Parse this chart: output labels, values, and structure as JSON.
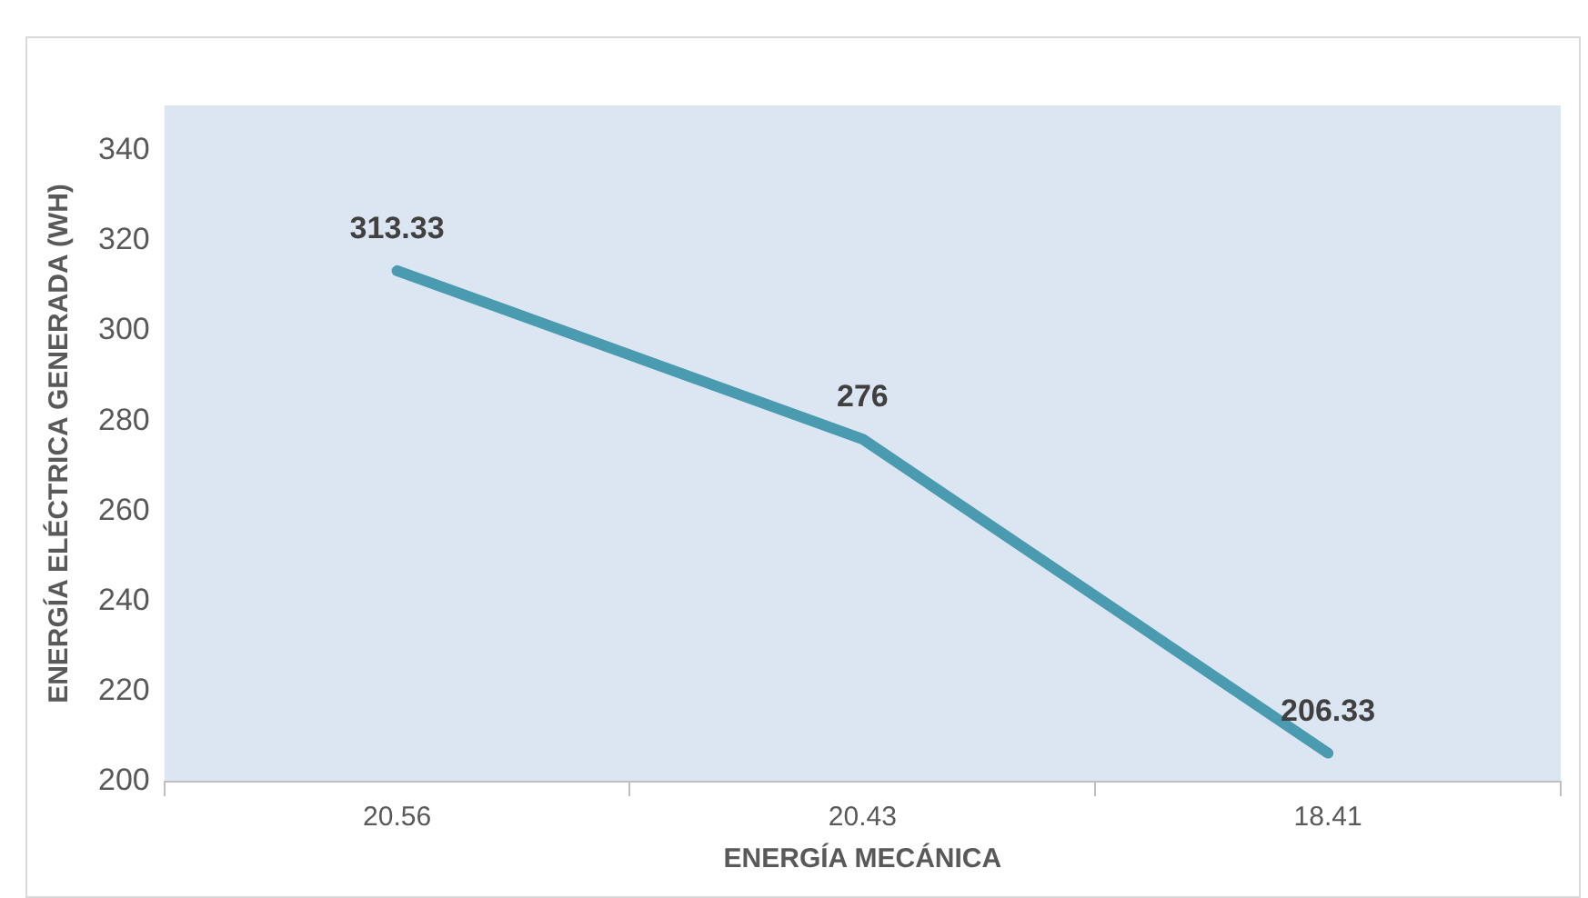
{
  "chart_data": {
    "type": "line",
    "xlabel": "ENERGÍA MECÁNICA",
    "ylabel": "ENERGÍA ELÉCTRICA GENERADA (WH)",
    "categories": [
      "20.56",
      "20.43",
      "18.41"
    ],
    "series": [
      {
        "color": "#4a9bb0",
        "values": [
          313.33,
          276,
          206.33
        ]
      }
    ],
    "ylim": [
      200,
      350
    ],
    "yticks": [
      200,
      220,
      240,
      260,
      280,
      300,
      320,
      340
    ],
    "grid": false,
    "legend": false,
    "marker": "none",
    "line_style": "solid",
    "data_labels": true
  }
}
